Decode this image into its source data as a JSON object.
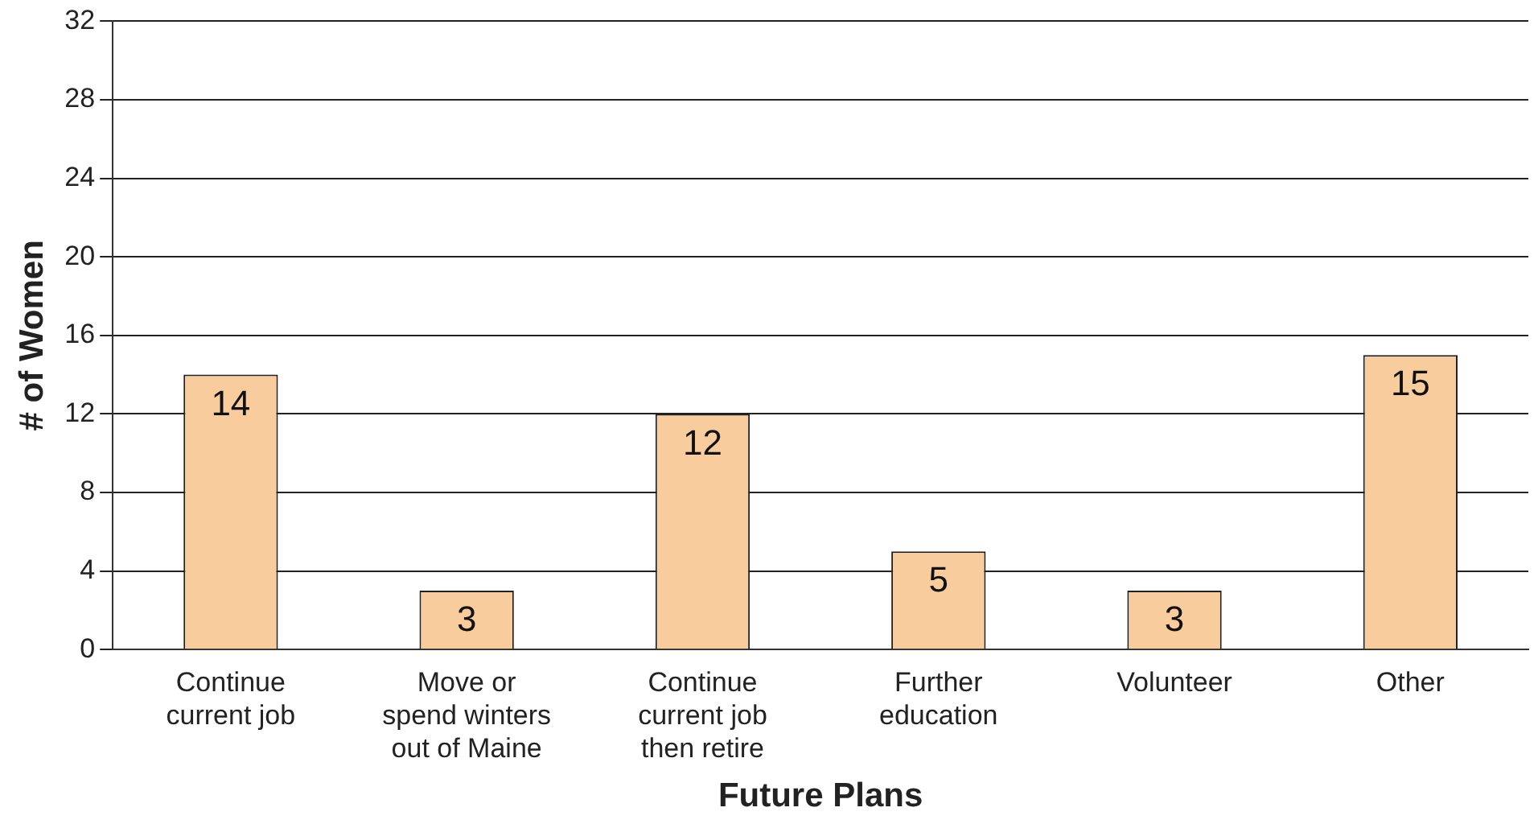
{
  "chart_data": {
    "type": "bar",
    "xlabel": "Future Plans",
    "ylabel": "# of Women",
    "categories": [
      "Continue current job",
      "Move or spend winters out of Maine",
      "Continue current job then retire",
      "Further education",
      "Volunteer",
      "Other"
    ],
    "values": [
      14,
      3,
      12,
      5,
      3,
      15
    ],
    "color": "#f8cc9c",
    "ylim": [
      0,
      32
    ],
    "yticks": [
      0,
      4,
      8,
      12,
      16,
      20,
      24,
      28,
      32
    ],
    "grid": "y",
    "data_labels": true
  }
}
